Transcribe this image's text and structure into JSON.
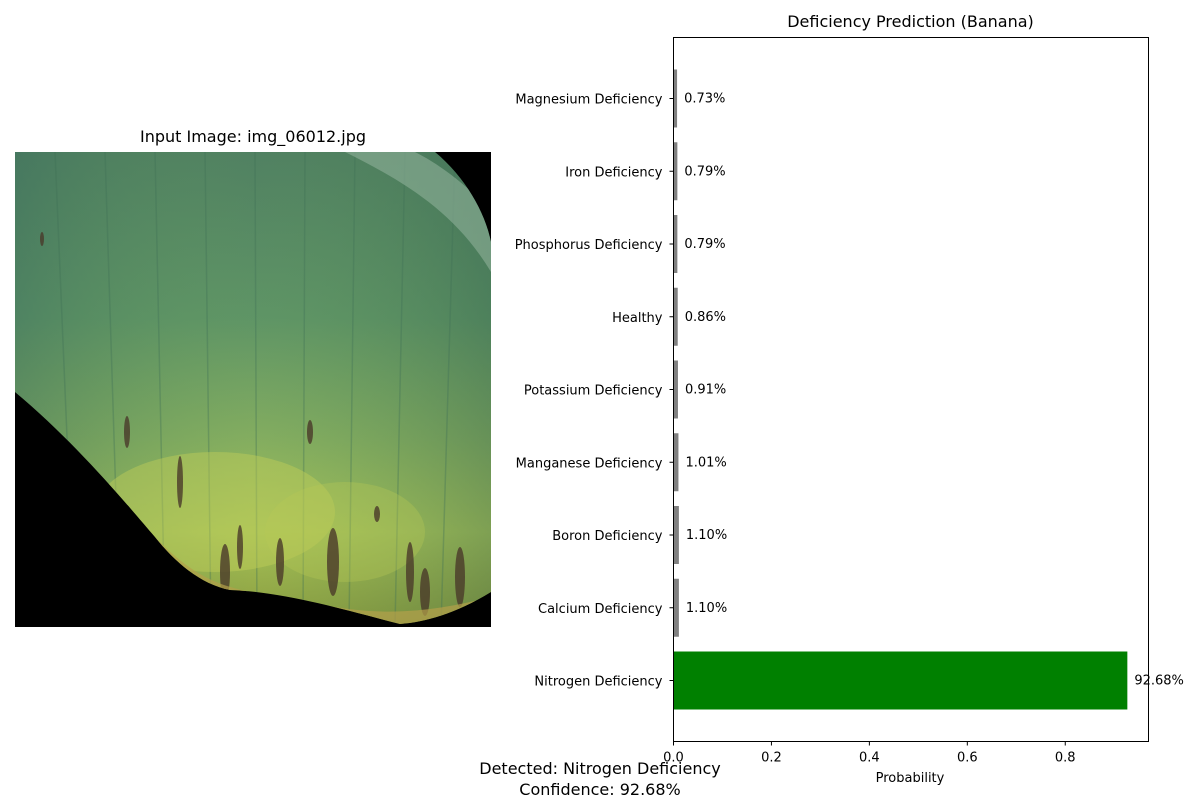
{
  "input_panel": {
    "title": "Input Image: img_06012.jpg"
  },
  "chart_data": {
    "type": "bar",
    "orientation": "horizontal",
    "title": "Deficiency Prediction (Banana)",
    "xlabel": "Probability",
    "ylabel": "",
    "xlim": [
      0,
      0.97
    ],
    "xticks": [
      0.0,
      0.2,
      0.4,
      0.6,
      0.8
    ],
    "xtick_labels": [
      "0.0",
      "0.2",
      "0.4",
      "0.6",
      "0.8"
    ],
    "categories": [
      "Magnesium Deficiency",
      "Iron Deficiency",
      "Phosphorus Deficiency",
      "Healthy",
      "Potassium Deficiency",
      "Manganese Deficiency",
      "Boron Deficiency",
      "Calcium Deficiency",
      "Nitrogen Deficiency"
    ],
    "values": [
      0.0073,
      0.0079,
      0.0079,
      0.0086,
      0.0091,
      0.0101,
      0.011,
      0.011,
      0.9268
    ],
    "value_labels": [
      "0.73%",
      "0.79%",
      "0.79%",
      "0.86%",
      "0.91%",
      "1.01%",
      "1.10%",
      "1.10%",
      "92.68%"
    ],
    "bar_colors": [
      "#808080",
      "#808080",
      "#808080",
      "#808080",
      "#808080",
      "#808080",
      "#808080",
      "#808080",
      "#008000"
    ],
    "grid": false,
    "legend": "none"
  },
  "result": {
    "detected": "Detected: Nitrogen Deficiency",
    "confidence": "Confidence: 92.68%"
  }
}
